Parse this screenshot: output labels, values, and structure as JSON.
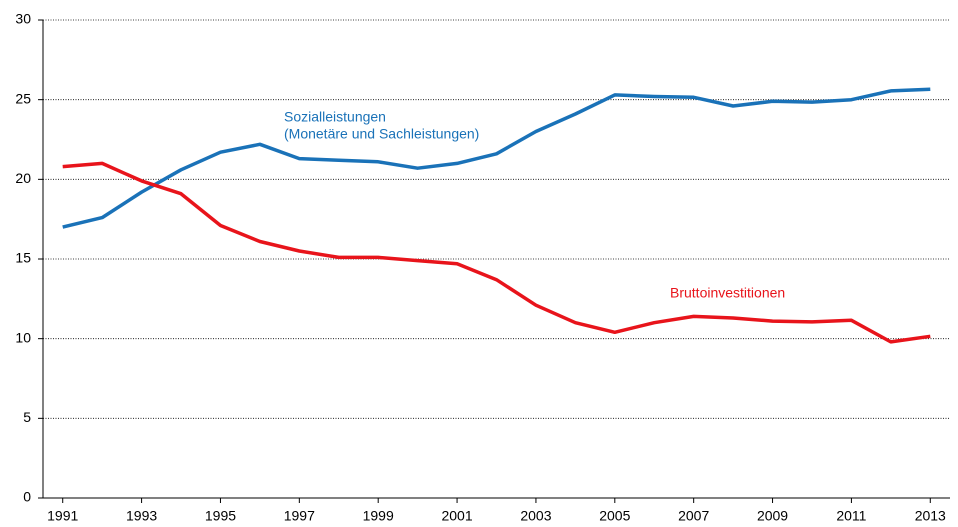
{
  "chart_data": {
    "type": "line",
    "x": [
      1991,
      1992,
      1993,
      1994,
      1995,
      1996,
      1997,
      1998,
      1999,
      2000,
      2001,
      2002,
      2003,
      2004,
      2005,
      2006,
      2007,
      2008,
      2009,
      2010,
      2011,
      2012,
      2013
    ],
    "series": [
      {
        "name": "Sozialleistungen (Monetäre und Sachleistungen)",
        "color": "#1a72b8",
        "values": [
          17.0,
          17.6,
          19.2,
          20.6,
          21.7,
          22.2,
          21.3,
          21.2,
          21.1,
          20.7,
          21.0,
          21.6,
          23.0,
          24.1,
          25.3,
          25.2,
          25.15,
          24.6,
          24.9,
          24.85,
          25.0,
          25.55,
          25.65
        ]
      },
      {
        "name": "Bruttoinvestitionen",
        "color": "#e8141b",
        "values": [
          20.8,
          21.0,
          19.9,
          19.1,
          17.1,
          16.1,
          15.5,
          15.1,
          15.1,
          14.9,
          14.7,
          13.7,
          12.1,
          11.0,
          10.4,
          11.0,
          11.4,
          11.3,
          11.1,
          11.05,
          11.15,
          9.8,
          10.15
        ]
      }
    ],
    "annotations": [
      {
        "series": 0,
        "lines": [
          "Sozialleistungen",
          "(Monetäre und Sachleistungen)"
        ]
      },
      {
        "series": 1,
        "lines": [
          "Bruttoinvestitionen"
        ]
      }
    ],
    "xlim": [
      1990.5,
      2013.5
    ],
    "xticks": [
      1991,
      1993,
      1995,
      1997,
      1999,
      2001,
      2003,
      2005,
      2007,
      2009,
      2011,
      2013
    ],
    "ylim": [
      0,
      30
    ],
    "yticks": [
      0,
      5,
      10,
      15,
      20,
      25,
      30
    ],
    "grid": true
  }
}
